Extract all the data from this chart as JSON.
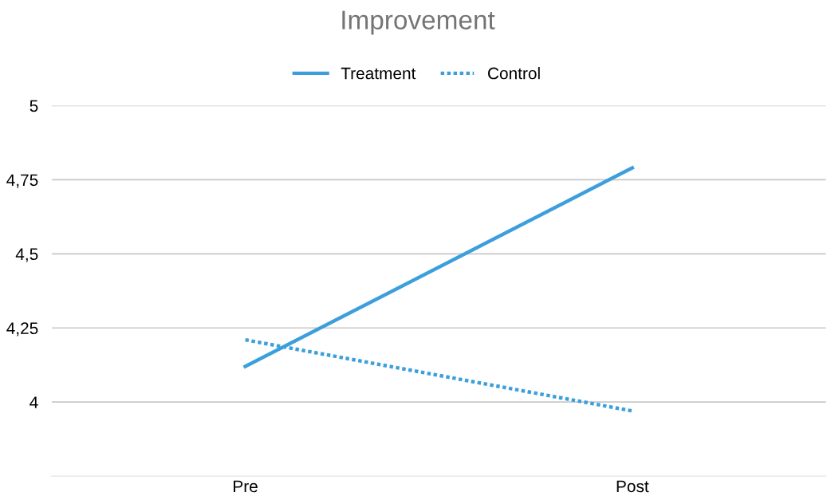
{
  "chart_data": {
    "type": "line",
    "title": "Improvement",
    "categories": [
      "Pre",
      "Post"
    ],
    "series": [
      {
        "name": "Treatment",
        "color": "#3c9fdc",
        "values": [
          4.12,
          4.79
        ],
        "line_style": "solid"
      },
      {
        "name": "Control",
        "color": "#3c9fdc",
        "values": [
          4.21,
          3.97
        ],
        "line_style": "dotted"
      }
    ],
    "ylim": [
      3.75,
      5
    ],
    "yticks": [
      {
        "value": 4,
        "label": "4"
      },
      {
        "value": 4.25,
        "label": "4,25"
      },
      {
        "value": 4.5,
        "label": "4,5"
      },
      {
        "value": 4.75,
        "label": "4,75"
      },
      {
        "value": 5,
        "label": "5"
      }
    ],
    "grid": "y",
    "legend": "top",
    "marker": "none"
  }
}
